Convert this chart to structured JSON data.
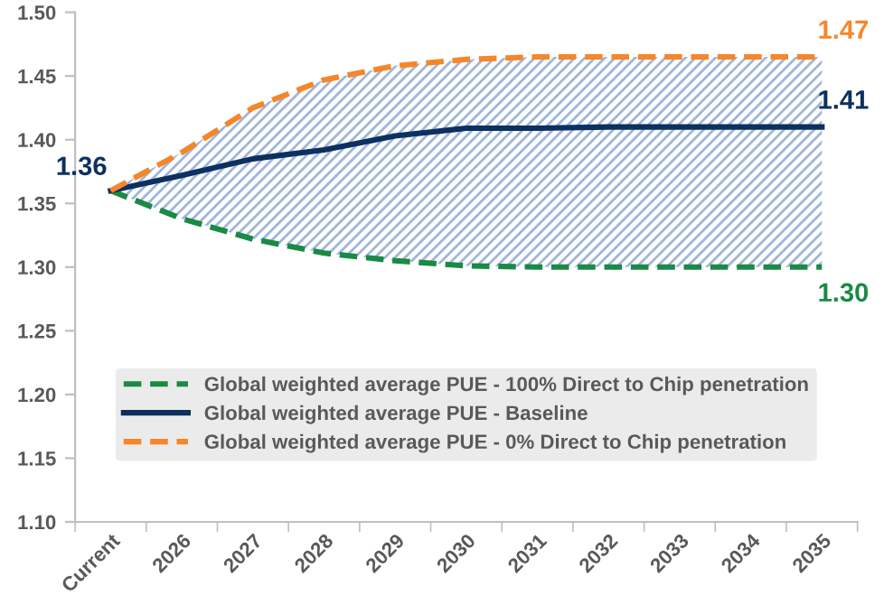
{
  "chart_data": {
    "type": "line",
    "categories": [
      "Current",
      "2026",
      "2027",
      "2028",
      "2029",
      "2030",
      "2031",
      "2032",
      "2033",
      "2034",
      "2035"
    ],
    "series": [
      {
        "name": "Global weighted average PUE - 100% Direct to Chip penetration",
        "color": "#1a8a45",
        "line_style": "dashed",
        "values": [
          1.36,
          1.338,
          1.322,
          1.311,
          1.305,
          1.301,
          1.3,
          1.3,
          1.3,
          1.3,
          1.3
        ],
        "value_labels": [
          null,
          null,
          null,
          null,
          null,
          null,
          null,
          null,
          null,
          null,
          "1.30"
        ]
      },
      {
        "name": "Global weighted average PUE - Baseline",
        "color": "#0c3160",
        "line_style": "solid",
        "values": [
          1.36,
          1.372,
          1.385,
          1.392,
          1.403,
          1.409,
          1.409,
          1.41,
          1.41,
          1.41,
          1.41
        ],
        "value_labels": [
          "1.36",
          null,
          null,
          null,
          null,
          null,
          null,
          null,
          null,
          null,
          "1.41"
        ],
        "lower": [
          1.36,
          1.338,
          1.322,
          1.311,
          1.305,
          1.301,
          1.3,
          1.3,
          1.3,
          1.3,
          1.3
        ],
        "upper": [
          1.36,
          1.39,
          1.425,
          1.447,
          1.458,
          1.463,
          1.465,
          1.465,
          1.465,
          1.465,
          1.465
        ]
      },
      {
        "name": "Global weighted average PUE - 0% Direct to Chip penetration",
        "color": "#f5862a",
        "line_style": "dashed",
        "values": [
          1.36,
          1.39,
          1.425,
          1.447,
          1.458,
          1.463,
          1.465,
          1.465,
          1.465,
          1.465,
          1.465
        ],
        "value_labels": [
          null,
          null,
          null,
          null,
          null,
          null,
          null,
          null,
          null,
          null,
          "1.47"
        ]
      }
    ],
    "ylim": [
      1.1,
      1.5
    ],
    "yticks": [
      {
        "value": 1.1,
        "label": "1.10"
      },
      1.15,
      {
        "value": 1.2,
        "label": "1.20"
      },
      1.25,
      {
        "value": 1.3,
        "label": "1.30"
      },
      1.35,
      {
        "value": 1.4,
        "label": "1.40"
      },
      1.45,
      {
        "value": 1.5,
        "label": "1.50"
      }
    ],
    "grid": false,
    "legend": "bottom",
    "marker": "none"
  }
}
